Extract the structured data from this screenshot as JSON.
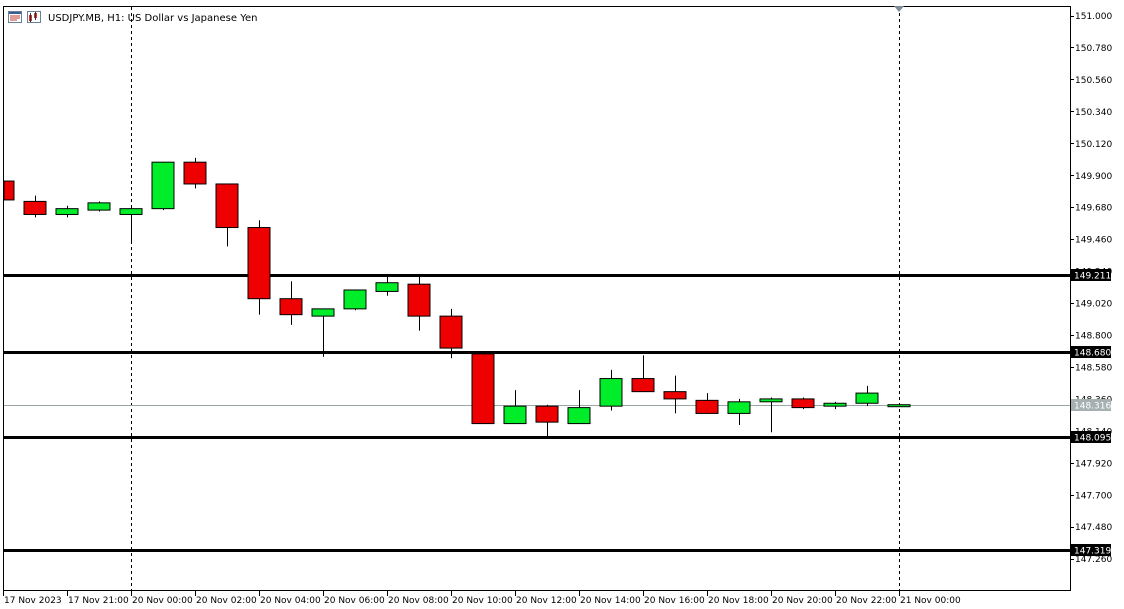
{
  "header": {
    "symbol_title": "USDJPY.MB, H1:  US Dollar vs Japanese Yen",
    "icon_names": [
      "chart-window-icon",
      "trading-icon"
    ]
  },
  "colors": {
    "bull": "#00ee2a",
    "bear": "#ee0000",
    "wick": "#000000",
    "level": "#000000",
    "price_line": "#9aa6a6",
    "vline": "#000000",
    "axis_text": "#000000"
  },
  "chart_data": {
    "type": "candlestick",
    "title": "USDJPY.MB, H1:  US Dollar vs Japanese Yen",
    "symbol": "USDJPY.MB",
    "timeframe": "H1",
    "ylim": [
      147.21,
      151.03
    ],
    "y_ticks": [
      "151.000",
      "150.780",
      "150.560",
      "150.340",
      "150.120",
      "149.900",
      "149.680",
      "149.460",
      "149.240",
      "149.020",
      "148.800",
      "148.580",
      "148.360",
      "148.140",
      "147.920",
      "147.700",
      "147.480",
      "147.260"
    ],
    "x_labels": [
      "17 Nov 2023",
      "17 Nov 21:00",
      "20 Nov 00:00",
      "20 Nov 02:00",
      "20 Nov 04:00",
      "20 Nov 06:00",
      "20 Nov 08:00",
      "20 Nov 10:00",
      "20 Nov 12:00",
      "20 Nov 14:00",
      "20 Nov 16:00",
      "20 Nov 18:00",
      "20 Nov 20:00",
      "20 Nov 22:00",
      "21 Nov 00:00"
    ],
    "candles": [
      {
        "index": -1,
        "open": 149.86,
        "high": 149.87,
        "low": 149.72,
        "close": 149.73
      },
      {
        "index": 0,
        "open": 149.72,
        "high": 149.76,
        "low": 149.61,
        "close": 149.63
      },
      {
        "index": 1,
        "open": 149.63,
        "high": 149.69,
        "low": 149.61,
        "close": 149.67
      },
      {
        "index": 2,
        "open": 149.66,
        "high": 149.72,
        "low": 149.65,
        "close": 149.71
      },
      {
        "index": 3,
        "open": 149.63,
        "high": 149.69,
        "low": 149.43,
        "close": 149.67
      },
      {
        "index": 4,
        "open": 149.67,
        "high": 149.99,
        "low": 149.66,
        "close": 149.99
      },
      {
        "index": 5,
        "open": 149.99,
        "high": 150.02,
        "low": 149.81,
        "close": 149.84
      },
      {
        "index": 6,
        "open": 149.84,
        "high": 149.84,
        "low": 149.41,
        "close": 149.54
      },
      {
        "index": 7,
        "open": 149.54,
        "high": 149.59,
        "low": 148.94,
        "close": 149.05
      },
      {
        "index": 8,
        "open": 149.05,
        "high": 149.17,
        "low": 148.87,
        "close": 148.94
      },
      {
        "index": 9,
        "open": 148.93,
        "high": 148.98,
        "low": 148.65,
        "close": 148.98
      },
      {
        "index": 10,
        "open": 148.98,
        "high": 149.11,
        "low": 148.97,
        "close": 149.11
      },
      {
        "index": 11,
        "open": 149.1,
        "high": 149.21,
        "low": 149.07,
        "close": 149.16
      },
      {
        "index": 12,
        "open": 149.15,
        "high": 149.21,
        "low": 148.83,
        "close": 148.93
      },
      {
        "index": 13,
        "open": 148.93,
        "high": 148.98,
        "low": 148.64,
        "close": 148.71
      },
      {
        "index": 14,
        "open": 148.67,
        "high": 148.69,
        "low": 148.19,
        "close": 148.19
      },
      {
        "index": 15,
        "open": 148.19,
        "high": 148.42,
        "low": 148.19,
        "close": 148.31
      },
      {
        "index": 16,
        "open": 148.31,
        "high": 148.32,
        "low": 148.1,
        "close": 148.2
      },
      {
        "index": 17,
        "open": 148.19,
        "high": 148.42,
        "low": 148.19,
        "close": 148.3
      },
      {
        "index": 18,
        "open": 148.31,
        "high": 148.56,
        "low": 148.28,
        "close": 148.5
      },
      {
        "index": 19,
        "open": 148.5,
        "high": 148.66,
        "low": 148.41,
        "close": 148.41
      },
      {
        "index": 20,
        "open": 148.41,
        "high": 148.52,
        "low": 148.26,
        "close": 148.36
      },
      {
        "index": 21,
        "open": 148.35,
        "high": 148.4,
        "low": 148.26,
        "close": 148.26
      },
      {
        "index": 22,
        "open": 148.26,
        "high": 148.36,
        "low": 148.18,
        "close": 148.34
      },
      {
        "index": 23,
        "open": 148.34,
        "high": 148.37,
        "low": 148.13,
        "close": 148.36
      },
      {
        "index": 24,
        "open": 148.36,
        "high": 148.37,
        "low": 148.29,
        "close": 148.3
      },
      {
        "index": 25,
        "open": 148.31,
        "high": 148.34,
        "low": 148.29,
        "close": 148.33
      },
      {
        "index": 26,
        "open": 148.33,
        "high": 148.45,
        "low": 148.31,
        "close": 148.4
      },
      {
        "index": 27,
        "open": 148.32,
        "high": 148.33,
        "low": 148.31,
        "close": 148.32
      }
    ],
    "levels": [
      {
        "price": 149.211,
        "label": "149.211"
      },
      {
        "price": 148.68,
        "label": "148.680"
      },
      {
        "price": 148.095,
        "label": "148.095"
      },
      {
        "price": 147.319,
        "label": "147.319"
      }
    ],
    "current_price": {
      "price": 148.316,
      "label": "148.316"
    },
    "period_separators": [
      "17 Nov 21:00",
      "20 Nov 23:00"
    ],
    "grid": false
  }
}
